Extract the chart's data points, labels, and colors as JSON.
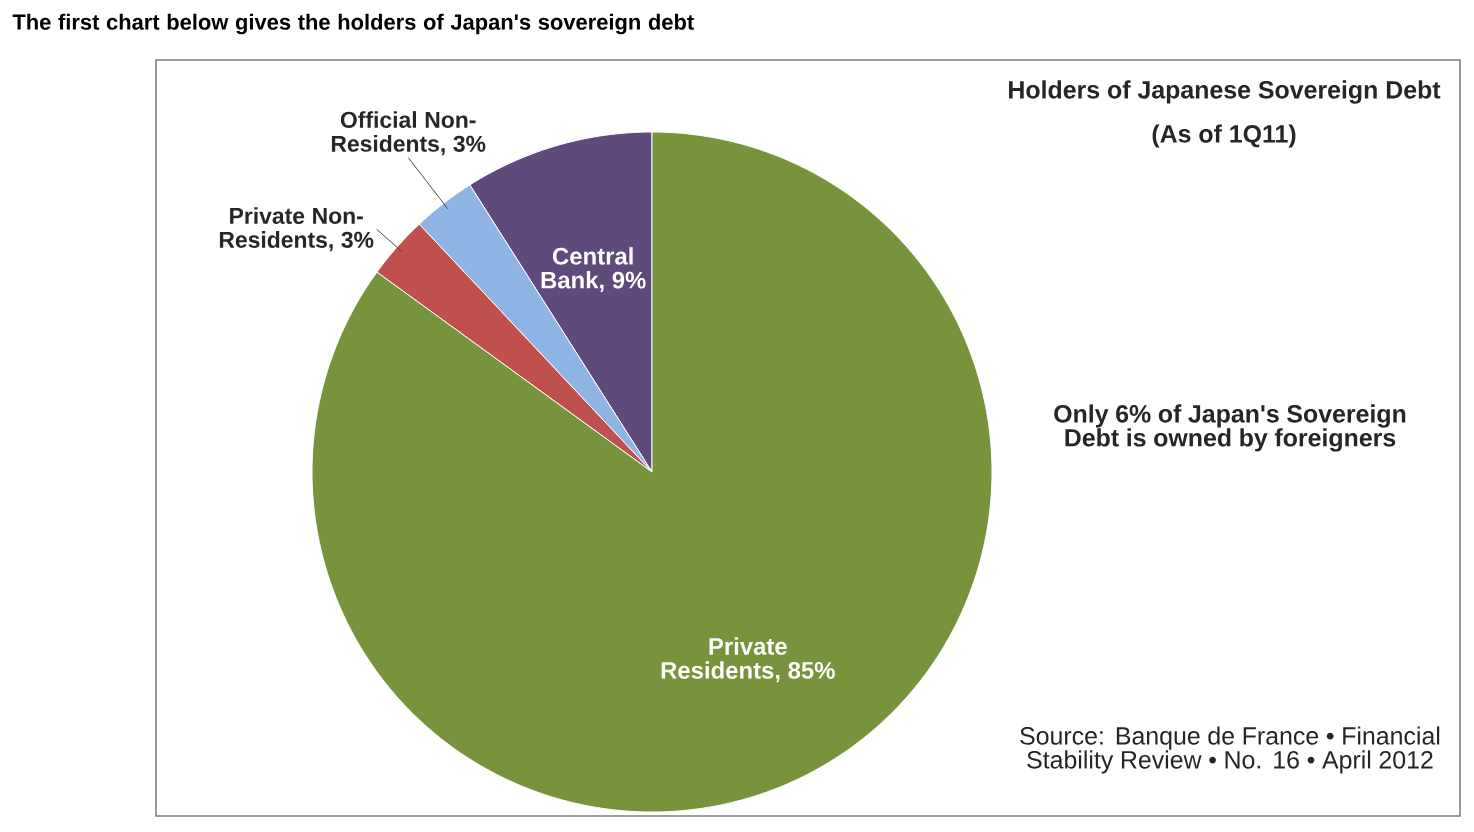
{
  "chart_data": {
    "type": "pie",
    "title": "Holders of Japanese Sovereign Debt",
    "subtitle": "(As of 1Q11)",
    "categories": [
      "Central Bank, 9%",
      "Official Non-Residents, 3%",
      "Private Non-Residents, 3%",
      "Private Residents, 85%"
    ],
    "values": [
      9,
      3,
      3,
      85
    ],
    "colors": [
      "#604a7b",
      "#8db4e2",
      "#c0504d",
      "#77933c"
    ],
    "annotations": [
      "The first chart below gives the holders of Japan's sovereign debt",
      "Only 6% of Japan's Sovereign Debt is owned by foreigners",
      "Source: Banque de France • Financial Stability Review • No. 16 • April 2012"
    ],
    "legend": false
  }
}
